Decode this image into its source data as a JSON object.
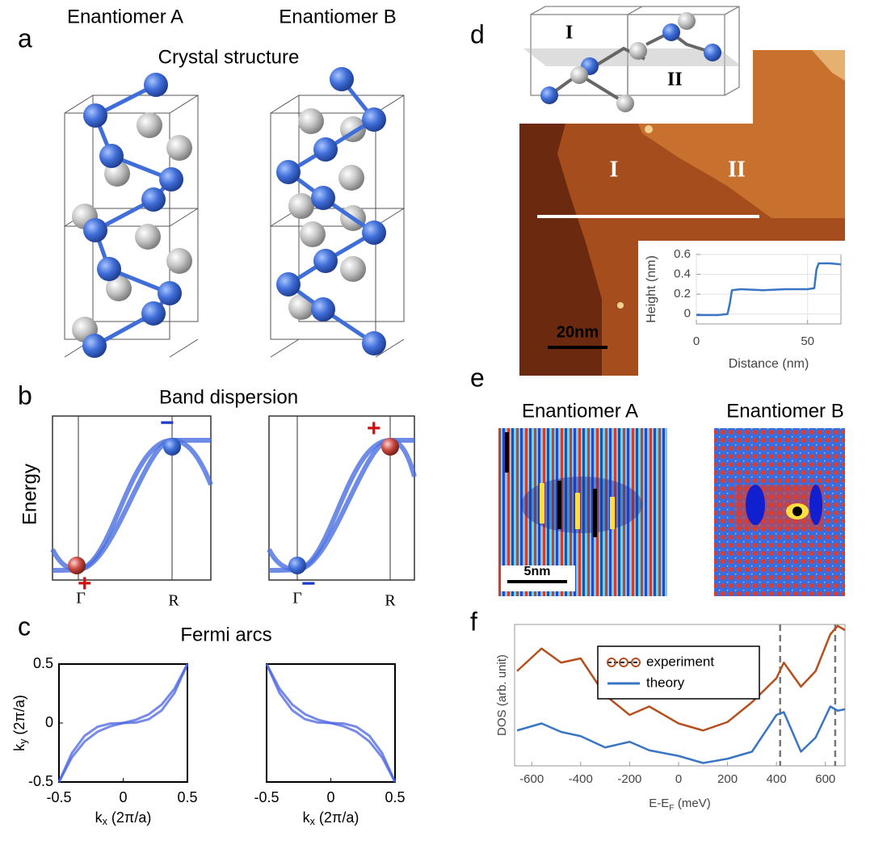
{
  "panels": {
    "a": {
      "label": "a",
      "titles": [
        "Enantiomer A",
        "Enantiomer B"
      ],
      "heading": "Crystal structure"
    },
    "b": {
      "label": "b",
      "heading": "Band dispersion",
      "ylabel": "Energy",
      "ticks": [
        "Γ",
        "R"
      ],
      "signs_left": [
        "−",
        "+"
      ],
      "signs_right": [
        "+",
        "−"
      ]
    },
    "c": {
      "label": "c",
      "heading": "Fermi arcs"
    },
    "d": {
      "label": "d",
      "terraces": [
        "I",
        "II"
      ],
      "cell_labels": [
        "I",
        "II"
      ],
      "scale_bar": "20nm"
    },
    "e": {
      "label": "e",
      "titles": [
        "Enantiomer A",
        "Enantiomer B"
      ],
      "scale_bar": "5nm"
    },
    "f": {
      "label": "f"
    }
  },
  "chart_data": [
    {
      "type": "line",
      "xlabel": {
        "main": "k",
        "sub": "x",
        "rest": " (2π/a)"
      },
      "ylabel": {
        "main": "k",
        "sub": "y",
        "rest": " (2π/a)"
      },
      "x": [
        -0.5,
        -0.4,
        -0.3,
        -0.2,
        -0.1,
        0,
        0.1,
        0.2,
        0.3,
        0.4,
        0.5
      ],
      "series": [
        {
          "color": "#4a63e0",
          "values": [
            -0.5,
            -0.256,
            -0.108,
            -0.032,
            -0.004,
            0,
            0.004,
            0.032,
            0.108,
            0.256,
            0.5
          ]
        },
        {
          "color": "#4a63e0",
          "values": [
            -0.5,
            -0.292,
            -0.156,
            -0.074,
            -0.028,
            0,
            0.028,
            0.074,
            0.156,
            0.292,
            0.5
          ]
        }
      ],
      "xlim": [
        -0.5,
        0.5
      ],
      "ylim": [
        -0.5,
        0.5
      ],
      "xticks": [
        -0.5,
        0,
        0.5
      ],
      "yticks": [
        -0.5,
        0,
        0.5
      ]
    },
    {
      "type": "line",
      "xlabel": {
        "main": "k",
        "sub": "x",
        "rest": " (2π/a)"
      },
      "x": [
        -0.5,
        -0.4,
        -0.3,
        -0.2,
        -0.1,
        0,
        0.1,
        0.2,
        0.3,
        0.4,
        0.5
      ],
      "series": [
        {
          "color": "#4a63e0",
          "values": [
            0.5,
            0.256,
            0.108,
            0.032,
            0.004,
            0,
            -0.004,
            -0.032,
            -0.108,
            -0.256,
            -0.5
          ]
        },
        {
          "color": "#4a63e0",
          "values": [
            0.5,
            0.292,
            0.156,
            0.074,
            0.028,
            0,
            -0.028,
            -0.074,
            -0.156,
            -0.292,
            -0.5
          ]
        }
      ],
      "xlim": [
        -0.5,
        0.5
      ],
      "ylim": [
        -0.5,
        0.5
      ],
      "xticks": [
        -0.5,
        0,
        0.5
      ]
    },
    {
      "type": "line",
      "xlabel": "Distance (nm)",
      "ylabel": "Height (nm)",
      "x": [
        0,
        5,
        10,
        14,
        15,
        16,
        20,
        30,
        40,
        50,
        53,
        54,
        55,
        60,
        65
      ],
      "series": [
        {
          "color": "#3a75c4",
          "values": [
            -0.01,
            -0.01,
            -0.01,
            0,
            0.1,
            0.24,
            0.25,
            0.24,
            0.25,
            0.25,
            0.26,
            0.45,
            0.51,
            0.51,
            0.5
          ]
        }
      ],
      "xlim": [
        0,
        65
      ],
      "ylim": [
        -0.1,
        0.6
      ],
      "xticks": [
        0,
        50
      ],
      "yticks": [
        0,
        0.2,
        0.4,
        0.6
      ],
      "grid": true
    },
    {
      "type": "line",
      "xlabel": {
        "main": "E-E",
        "sub": "F",
        "rest": " (meV)"
      },
      "ylabel": "DOS (arb. unit)",
      "x": [
        -660,
        -560,
        -480,
        -400,
        -300,
        -200,
        -120,
        0,
        100,
        200,
        300,
        400,
        430,
        500,
        560,
        620,
        650,
        680
      ],
      "series": [
        {
          "name": "experiment",
          "color": "#b5501e",
          "values": [
            0.67,
            0.83,
            0.73,
            0.76,
            0.5,
            0.36,
            0.42,
            0.3,
            0.25,
            0.31,
            0.45,
            0.62,
            0.73,
            0.56,
            0.67,
            0.93,
            0.99,
            0.96
          ]
        },
        {
          "name": "theory",
          "color": "#3a75c4",
          "values": [
            0.25,
            0.3,
            0.24,
            0.21,
            0.13,
            0.17,
            0.11,
            0.07,
            0.02,
            0.05,
            0.1,
            0.36,
            0.38,
            0.1,
            0.2,
            0.42,
            0.39,
            0.4
          ]
        }
      ],
      "xlim": [
        -670,
        680
      ],
      "ylim": [
        0,
        1
      ],
      "xticks": [
        -600,
        -400,
        -200,
        0,
        200,
        400,
        600
      ],
      "vlines": [
        415,
        640
      ],
      "legend": "upper center"
    }
  ]
}
